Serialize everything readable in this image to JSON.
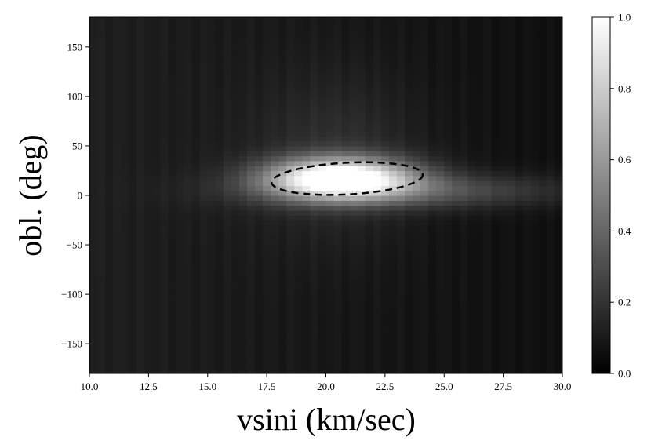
{
  "chart_data": {
    "type": "heatmap",
    "title": "",
    "xlabel": "vsini (km/sec)",
    "ylabel": "obl. (deg)",
    "xlim": [
      10.0,
      30.0
    ],
    "ylim": [
      -180,
      180
    ],
    "x_ticks": [
      "10.0",
      "12.5",
      "15.0",
      "17.5",
      "20.0",
      "22.5",
      "25.0",
      "27.5",
      "30.0"
    ],
    "y_ticks": [
      "150",
      "100",
      "50",
      "0",
      "−50",
      "−100",
      "−150"
    ],
    "x_tick_values": [
      10.0,
      12.5,
      15.0,
      17.5,
      20.0,
      22.5,
      25.0,
      27.5,
      30.0
    ],
    "y_tick_values": [
      150,
      100,
      50,
      0,
      -50,
      -100,
      -150
    ],
    "colorbar": {
      "colormap": "gray",
      "range": [
        0.0,
        1.0
      ],
      "ticks": [
        "0.0",
        "0.2",
        "0.4",
        "0.6",
        "0.8",
        "1.0"
      ],
      "tick_values": [
        0.0,
        0.2,
        0.4,
        0.6,
        0.8,
        1.0
      ]
    },
    "peak": {
      "vsini": 20.6,
      "obl": 18,
      "value": 1.0
    },
    "contour_ellipse": {
      "style": "dashed",
      "color": "#000000",
      "center": {
        "vsini": 20.9,
        "obl": 17
      },
      "semi_axis_vsini": 3.2,
      "semi_axis_obl": 16,
      "tilt_deg": -3
    },
    "grid": false
  }
}
